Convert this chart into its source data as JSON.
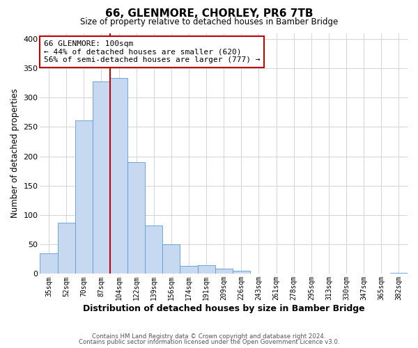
{
  "title": "66, GLENMORE, CHORLEY, PR6 7TB",
  "subtitle": "Size of property relative to detached houses in Bamber Bridge",
  "xlabel": "Distribution of detached houses by size in Bamber Bridge",
  "ylabel": "Number of detached properties",
  "bin_labels": [
    "35sqm",
    "52sqm",
    "70sqm",
    "87sqm",
    "104sqm",
    "122sqm",
    "139sqm",
    "156sqm",
    "174sqm",
    "191sqm",
    "209sqm",
    "226sqm",
    "243sqm",
    "261sqm",
    "278sqm",
    "295sqm",
    "313sqm",
    "330sqm",
    "347sqm",
    "365sqm",
    "382sqm"
  ],
  "bar_heights": [
    35,
    87,
    261,
    328,
    333,
    190,
    82,
    50,
    14,
    15,
    9,
    5,
    0,
    0,
    0,
    0,
    0,
    0,
    0,
    0,
    2
  ],
  "bar_color": "#c6d9f0",
  "bar_edge_color": "#5b9bd5",
  "property_line_x": 3.5,
  "property_line_color": "#c00000",
  "annotation_line1": "66 GLENMORE: 100sqm",
  "annotation_line2": "← 44% of detached houses are smaller (620)",
  "annotation_line3": "56% of semi-detached houses are larger (777) →",
  "annotation_box_color": "#c00000",
  "ylim": [
    0,
    410
  ],
  "yticks": [
    0,
    50,
    100,
    150,
    200,
    250,
    300,
    350,
    400
  ],
  "footer_line1": "Contains HM Land Registry data © Crown copyright and database right 2024.",
  "footer_line2": "Contains public sector information licensed under the Open Government Licence v3.0.",
  "background_color": "#ffffff",
  "grid_color": "#d4d4d4"
}
